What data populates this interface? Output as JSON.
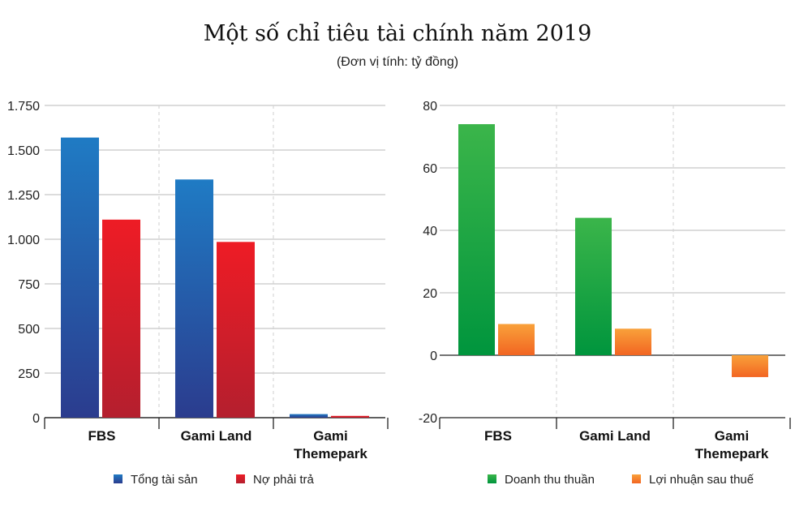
{
  "title": "Một số chỉ tiêu tài chính năm 2019",
  "subtitle": "(Đơn vị tính: tỷ đồng)",
  "chart_data": [
    {
      "type": "bar",
      "categories": [
        "FBS",
        "Gami Land",
        "Gami Themepark"
      ],
      "category_lines": [
        [
          "FBS"
        ],
        [
          "Gami Land"
        ],
        [
          "Gami",
          "Themepark"
        ]
      ],
      "series": [
        {
          "name": "Tổng tài sản",
          "values": [
            1570,
            1335,
            20
          ],
          "color_top": "#1f7bc4",
          "color_bottom": "#2b3c8e"
        },
        {
          "name": "Nợ phải trả",
          "values": [
            1110,
            985,
            10
          ],
          "color_top": "#ee1c25",
          "color_bottom": "#b41f2e"
        }
      ],
      "ylim": [
        0,
        1750
      ],
      "yticks": [
        0,
        250,
        500,
        750,
        1000,
        1250,
        1500,
        1750
      ],
      "ytick_labels": [
        "0",
        "250",
        "500",
        "750",
        "1.000",
        "1.250",
        "1.500",
        "1.750"
      ],
      "grid": true,
      "legend": "bottom"
    },
    {
      "type": "bar",
      "categories": [
        "FBS",
        "Gami Land",
        "Gami Themepark"
      ],
      "category_lines": [
        [
          "FBS"
        ],
        [
          "Gami Land"
        ],
        [
          "Gami",
          "Themepark"
        ]
      ],
      "series": [
        {
          "name": "Doanh thu thuần",
          "values": [
            74,
            44,
            0
          ],
          "color_top": "#3bb54a",
          "color_bottom": "#00953d"
        },
        {
          "name": "Lợi nhuận sau thuế",
          "values": [
            10,
            8.5,
            -7
          ],
          "color_top": "#f9a13a",
          "color_bottom": "#f26522"
        }
      ],
      "ylim": [
        -20,
        80
      ],
      "yticks": [
        -20,
        0,
        20,
        40,
        60,
        80
      ],
      "ytick_labels": [
        "-20",
        "0",
        "20",
        "40",
        "60",
        "80"
      ],
      "grid": true,
      "legend": "bottom"
    }
  ]
}
